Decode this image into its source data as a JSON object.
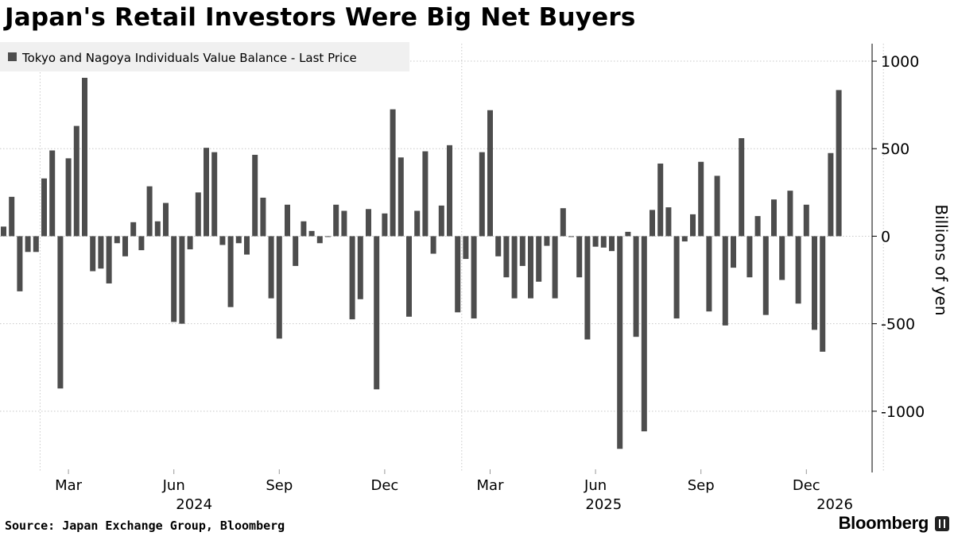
{
  "title": "Japan's Retail Investors Were Big Net Buyers",
  "source": "Source: Japan Exchange Group, Bloomberg",
  "brand": "Bloomberg",
  "colors": {
    "bar": "#4d4d4d",
    "legend_bg": "#f0f0f0",
    "grid": "#c8c8c8",
    "axis": "#999999"
  },
  "chart_data": {
    "type": "bar",
    "series": [
      {
        "name": "Tokyo and Nagoya Individuals Value Balance - Last Price",
        "values": [
          55,
          225,
          -315,
          -90,
          -90,
          330,
          490,
          -870,
          445,
          630,
          905,
          -200,
          -185,
          -270,
          -40,
          -115,
          80,
          -80,
          285,
          85,
          190,
          -490,
          -500,
          -75,
          250,
          505,
          480,
          -50,
          -405,
          -40,
          -105,
          465,
          220,
          -355,
          -585,
          180,
          -170,
          85,
          30,
          -40,
          0,
          180,
          145,
          -475,
          -360,
          155,
          -875,
          130,
          725,
          450,
          -460,
          145,
          485,
          -100,
          175,
          520,
          -435,
          -130,
          -470,
          480,
          720,
          -115,
          -235,
          -355,
          -170,
          -355,
          -260,
          -55,
          -355,
          160,
          0,
          -235,
          -590,
          -60,
          -65,
          -85,
          -1215,
          25,
          -575,
          -1115,
          150,
          415,
          165,
          -470,
          -30,
          125,
          425,
          -430,
          345,
          -510,
          -180,
          560,
          -235,
          115,
          -450,
          210,
          -250,
          260,
          -385,
          180,
          -535,
          -660,
          475,
          835
        ]
      }
    ],
    "x_tick_labels": [
      {
        "label": "Mar",
        "index": 8
      },
      {
        "label": "Jun",
        "index": 21
      },
      {
        "label": "Sep",
        "index": 34
      },
      {
        "label": "Dec",
        "index": 47
      },
      {
        "label": "Mar",
        "index": 60
      },
      {
        "label": "Jun",
        "index": 73
      },
      {
        "label": "Sep",
        "index": 86
      },
      {
        "label": "Dec",
        "index": 99
      }
    ],
    "year_labels": [
      {
        "label": "2024",
        "index": 23.5
      },
      {
        "label": "2025",
        "index": 74
      },
      {
        "label": "2026",
        "index": 102.5
      }
    ],
    "year_dividers": [
      4.5,
      56.5,
      108.5
    ],
    "y_ticks": [
      1000,
      500,
      0,
      -500,
      -1000
    ],
    "y_tick_labels": [
      "1000",
      "500",
      "0",
      "-500",
      "-1000"
    ],
    "ylim": [
      -1350,
      1100
    ],
    "ylabel": "Billions of yen",
    "xlabel": "",
    "grid": true,
    "y_axis_side": "right",
    "legend": "top-left"
  }
}
